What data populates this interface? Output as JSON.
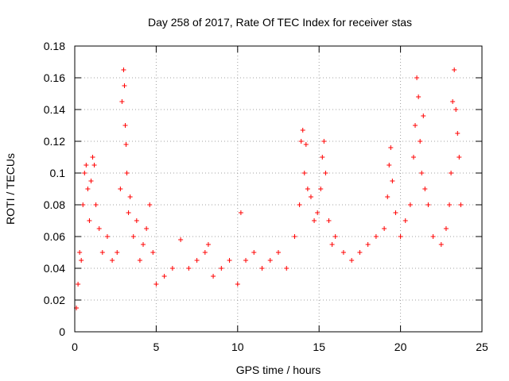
{
  "chart_data": {
    "type": "scatter",
    "title": "Day 258 of 2017, Rate Of TEC Index for receiver stas",
    "xlabel": "GPS time / hours",
    "ylabel": "ROTI / TECUs",
    "xlim": [
      0,
      25
    ],
    "ylim": [
      0,
      0.18
    ],
    "xticks": [
      0,
      5,
      10,
      15,
      20,
      25
    ],
    "xtick_labels": [
      "0",
      "5",
      "10",
      "15",
      "20",
      "25"
    ],
    "yticks": [
      0,
      0.02,
      0.04,
      0.06,
      0.08,
      0.1,
      0.12,
      0.14,
      0.16,
      0.18
    ],
    "ytick_labels": [
      "0",
      "0.02",
      "0.04",
      "0.06",
      "0.08",
      "0.1",
      "0.12",
      "0.14",
      "0.16",
      "0.18"
    ],
    "grid": true,
    "marker": "+",
    "color": "#ff0000",
    "series": [
      {
        "points": [
          [
            0.1,
            0.015
          ],
          [
            0.2,
            0.03
          ],
          [
            0.3,
            0.05
          ],
          [
            0.4,
            0.045
          ],
          [
            0.5,
            0.08
          ],
          [
            0.6,
            0.1
          ],
          [
            0.7,
            0.105
          ],
          [
            0.8,
            0.09
          ],
          [
            0.9,
            0.07
          ],
          [
            1.0,
            0.095
          ],
          [
            1.1,
            0.11
          ],
          [
            1.2,
            0.105
          ],
          [
            1.3,
            0.08
          ],
          [
            1.5,
            0.065
          ],
          [
            1.7,
            0.05
          ],
          [
            2.0,
            0.06
          ],
          [
            2.3,
            0.045
          ],
          [
            2.6,
            0.05
          ],
          [
            2.8,
            0.09
          ],
          [
            2.9,
            0.145
          ],
          [
            3.0,
            0.165
          ],
          [
            3.05,
            0.155
          ],
          [
            3.1,
            0.13
          ],
          [
            3.15,
            0.118
          ],
          [
            3.2,
            0.1
          ],
          [
            3.3,
            0.075
          ],
          [
            3.4,
            0.085
          ],
          [
            3.6,
            0.06
          ],
          [
            3.8,
            0.07
          ],
          [
            4.0,
            0.045
          ],
          [
            4.2,
            0.055
          ],
          [
            4.4,
            0.065
          ],
          [
            4.6,
            0.08
          ],
          [
            4.8,
            0.05
          ],
          [
            5.0,
            0.03
          ],
          [
            5.5,
            0.035
          ],
          [
            6.0,
            0.04
          ],
          [
            6.5,
            0.058
          ],
          [
            7.0,
            0.04
          ],
          [
            7.5,
            0.045
          ],
          [
            8.0,
            0.05
          ],
          [
            8.2,
            0.055
          ],
          [
            8.5,
            0.035
          ],
          [
            9.0,
            0.04
          ],
          [
            9.5,
            0.045
          ],
          [
            10.0,
            0.03
          ],
          [
            10.2,
            0.075
          ],
          [
            10.5,
            0.045
          ],
          [
            11.0,
            0.05
          ],
          [
            11.5,
            0.04
          ],
          [
            12.0,
            0.045
          ],
          [
            12.5,
            0.05
          ],
          [
            13.0,
            0.04
          ],
          [
            13.5,
            0.06
          ],
          [
            13.8,
            0.08
          ],
          [
            13.9,
            0.12
          ],
          [
            14.0,
            0.127
          ],
          [
            14.1,
            0.1
          ],
          [
            14.2,
            0.118
          ],
          [
            14.3,
            0.09
          ],
          [
            14.5,
            0.085
          ],
          [
            14.7,
            0.07
          ],
          [
            14.9,
            0.075
          ],
          [
            15.1,
            0.09
          ],
          [
            15.2,
            0.11
          ],
          [
            15.3,
            0.12
          ],
          [
            15.4,
            0.1
          ],
          [
            15.6,
            0.07
          ],
          [
            15.8,
            0.055
          ],
          [
            16.0,
            0.06
          ],
          [
            16.5,
            0.05
          ],
          [
            17.0,
            0.045
          ],
          [
            17.5,
            0.05
          ],
          [
            18.0,
            0.055
          ],
          [
            18.5,
            0.06
          ],
          [
            19.0,
            0.065
          ],
          [
            19.2,
            0.085
          ],
          [
            19.3,
            0.105
          ],
          [
            19.4,
            0.116
          ],
          [
            19.5,
            0.095
          ],
          [
            19.7,
            0.075
          ],
          [
            20.0,
            0.06
          ],
          [
            20.3,
            0.07
          ],
          [
            20.6,
            0.08
          ],
          [
            20.8,
            0.11
          ],
          [
            20.9,
            0.13
          ],
          [
            21.0,
            0.16
          ],
          [
            21.1,
            0.148
          ],
          [
            21.2,
            0.12
          ],
          [
            21.3,
            0.1
          ],
          [
            21.4,
            0.136
          ],
          [
            21.5,
            0.09
          ],
          [
            21.7,
            0.08
          ],
          [
            22.0,
            0.06
          ],
          [
            22.5,
            0.055
          ],
          [
            22.8,
            0.065
          ],
          [
            23.0,
            0.08
          ],
          [
            23.1,
            0.1
          ],
          [
            23.2,
            0.145
          ],
          [
            23.3,
            0.165
          ],
          [
            23.4,
            0.14
          ],
          [
            23.5,
            0.125
          ],
          [
            23.6,
            0.11
          ],
          [
            23.7,
            0.08
          ]
        ]
      }
    ]
  }
}
